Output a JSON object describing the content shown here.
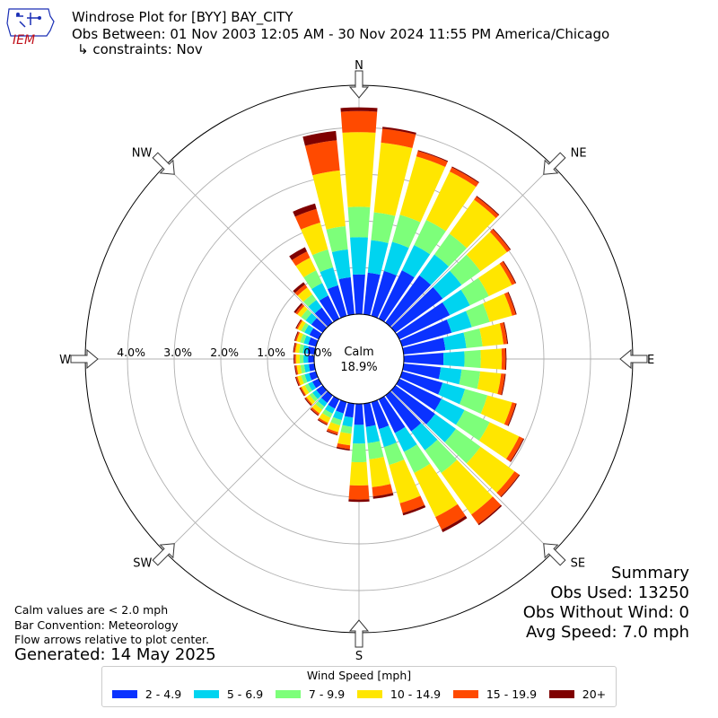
{
  "header": {
    "title_line1": "Windrose Plot for [BYY] BAY_CITY",
    "title_line2": "Obs Between: 01 Nov 2003 12:05 AM - 30 Nov 2024 11:55 PM America/Chicago",
    "title_line3": "↳ constraints: Nov",
    "logo_text": "IEM"
  },
  "notes": {
    "calm_note": "Calm values are < 2.0 mph",
    "bar_convention": "Bar Convention: Meteorology",
    "flow_note": "Flow arrows relative to plot center.",
    "generated": "Generated: 14 May 2025"
  },
  "summary": {
    "heading": "Summary",
    "obs_used": "Obs Used: 13250",
    "obs_without_wind": "Obs Without Wind: 0",
    "avg_speed": "Avg Speed: 7.0 mph"
  },
  "legend": {
    "title": "Wind Speed [mph]",
    "items": [
      {
        "label": "2 - 4.9",
        "color": "#0a32ff"
      },
      {
        "label": "5 - 6.9",
        "color": "#00d4f0"
      },
      {
        "label": "7 - 9.9",
        "color": "#7dff7a"
      },
      {
        "label": "10 - 14.9",
        "color": "#ffe600"
      },
      {
        "label": "15 - 19.9",
        "color": "#ff4a00"
      },
      {
        "label": "20+",
        "color": "#7f0000"
      }
    ]
  },
  "chart_data": {
    "type": "windrose",
    "title": "Windrose Plot for [BYY] BAY_CITY",
    "calm_label": "Calm",
    "calm_value": "18.9%",
    "radial_unit": "%",
    "rlim": [
      0,
      5.0
    ],
    "rings": [
      0,
      1,
      2,
      3,
      4
    ],
    "ring_labels": [
      "0.0%",
      "1.0%",
      "2.0%",
      "3.0%",
      "4.0%"
    ],
    "compass_labels": [
      {
        "label": "N",
        "angle": 0
      },
      {
        "label": "NE",
        "angle": 45
      },
      {
        "label": "E",
        "angle": 90
      },
      {
        "label": "SE",
        "angle": 135
      },
      {
        "label": "S",
        "angle": 180
      },
      {
        "label": "SW",
        "angle": 225
      },
      {
        "label": "W",
        "angle": 270
      },
      {
        "label": "NW",
        "angle": 315
      }
    ],
    "grid": true,
    "directions": [
      0,
      10,
      20,
      30,
      40,
      50,
      60,
      70,
      80,
      90,
      100,
      110,
      120,
      130,
      140,
      150,
      160,
      170,
      180,
      190,
      200,
      210,
      220,
      230,
      240,
      250,
      260,
      270,
      280,
      290,
      300,
      310,
      320,
      330,
      340,
      350
    ],
    "series": [
      {
        "name": "2 - 4.9",
        "color": "#0a32ff",
        "values": [
          0.85,
          0.9,
          1.0,
          1.15,
          1.25,
          1.25,
          1.2,
          1.1,
          0.9,
          0.85,
          0.8,
          0.9,
          1.0,
          1.05,
          0.95,
          0.8,
          0.6,
          0.5,
          0.45,
          0.3,
          0.25,
          0.22,
          0.2,
          0.17,
          0.15,
          0.15,
          0.12,
          0.13,
          0.15,
          0.17,
          0.22,
          0.3,
          0.4,
          0.55,
          0.68,
          0.8
        ]
      },
      {
        "name": "5 - 6.9",
        "color": "#00d4f0",
        "values": [
          0.8,
          0.7,
          0.65,
          0.6,
          0.55,
          0.5,
          0.48,
          0.45,
          0.45,
          0.45,
          0.45,
          0.5,
          0.55,
          0.55,
          0.5,
          0.45,
          0.4,
          0.35,
          0.4,
          0.2,
          0.15,
          0.12,
          0.1,
          0.1,
          0.1,
          0.1,
          0.1,
          0.1,
          0.1,
          0.1,
          0.12,
          0.15,
          0.2,
          0.3,
          0.4,
          0.6
        ]
      },
      {
        "name": "7 - 9.9",
        "color": "#7dff7a",
        "values": [
          0.65,
          0.6,
          0.6,
          0.6,
          0.55,
          0.5,
          0.45,
          0.4,
          0.35,
          0.35,
          0.4,
          0.5,
          0.6,
          0.65,
          0.6,
          0.5,
          0.4,
          0.35,
          0.4,
          0.15,
          0.12,
          0.1,
          0.08,
          0.08,
          0.08,
          0.08,
          0.08,
          0.08,
          0.08,
          0.08,
          0.08,
          0.12,
          0.15,
          0.3,
          0.4,
          0.5
        ]
      },
      {
        "name": "10 - 14.9",
        "color": "#ffe600",
        "values": [
          1.6,
          1.5,
          1.3,
          1.15,
          0.9,
          0.7,
          0.55,
          0.5,
          0.45,
          0.45,
          0.45,
          0.55,
          0.7,
          0.9,
          1.1,
          1.05,
          0.85,
          0.6,
          0.5,
          0.25,
          0.15,
          0.12,
          0.1,
          0.08,
          0.08,
          0.08,
          0.08,
          0.08,
          0.08,
          0.08,
          0.08,
          0.1,
          0.18,
          0.3,
          0.6,
          1.2
        ]
      },
      {
        "name": "15 - 19.9",
        "color": "#ff4a00",
        "values": [
          0.45,
          0.3,
          0.12,
          0.1,
          0.08,
          0.08,
          0.08,
          0.08,
          0.08,
          0.08,
          0.08,
          0.08,
          0.1,
          0.12,
          0.25,
          0.3,
          0.22,
          0.2,
          0.3,
          0.08,
          0.05,
          0.04,
          0.04,
          0.03,
          0.03,
          0.03,
          0.03,
          0.03,
          0.03,
          0.03,
          0.03,
          0.05,
          0.08,
          0.15,
          0.3,
          0.65
        ]
      },
      {
        "name": "20+",
        "color": "#7f0000",
        "values": [
          0.08,
          0.04,
          0.02,
          0.02,
          0.02,
          0.02,
          0.02,
          0.02,
          0.02,
          0.02,
          0.02,
          0.02,
          0.02,
          0.02,
          0.03,
          0.06,
          0.05,
          0.05,
          0.05,
          0.03,
          0.02,
          0.02,
          0.02,
          0.02,
          0.02,
          0.02,
          0.02,
          0.02,
          0.02,
          0.02,
          0.02,
          0.04,
          0.06,
          0.1,
          0.12,
          0.2
        ]
      }
    ]
  }
}
